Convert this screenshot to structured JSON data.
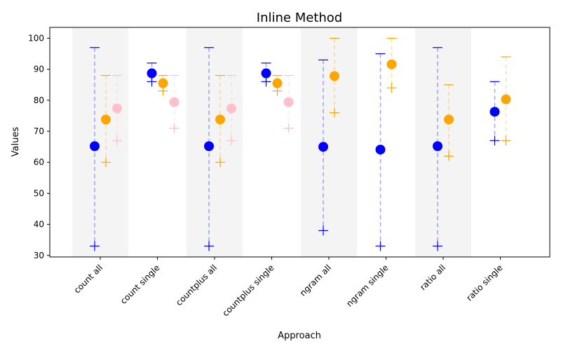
{
  "chart_data": {
    "type": "scatter",
    "title": "Inline Method",
    "xlabel": "Approach",
    "ylabel": "Values",
    "ylim": [
      29.5,
      103.5
    ],
    "yticks": [
      30,
      40,
      50,
      60,
      70,
      80,
      90,
      100
    ],
    "categories": [
      "count all",
      "count single",
      "countplus all",
      "countplus single",
      "ngram all",
      "ngram single",
      "ratio all",
      "ratio single"
    ],
    "shaded_categories": [
      0,
      2,
      4,
      6
    ],
    "grid": false,
    "legend": "none",
    "series": [
      {
        "color": "#0000ff",
        "points": [
          {
            "cat": 0,
            "mean": 65.2,
            "min": 33,
            "max": 97
          },
          {
            "cat": 1,
            "mean": 88.7,
            "min": 86,
            "max": 92
          },
          {
            "cat": 2,
            "mean": 65.2,
            "min": 33,
            "max": 97
          },
          {
            "cat": 3,
            "mean": 88.7,
            "min": 86,
            "max": 92
          },
          {
            "cat": 4,
            "mean": 65.0,
            "min": 38,
            "max": 93
          },
          {
            "cat": 5,
            "mean": 64.1,
            "min": 33,
            "max": 95
          },
          {
            "cat": 6,
            "mean": 65.2,
            "min": 33,
            "max": 97
          },
          {
            "cat": 7,
            "mean": 76.3,
            "min": 67,
            "max": 86
          }
        ]
      },
      {
        "color": "#ffa500",
        "points": [
          {
            "cat": 0,
            "mean": 73.8,
            "min": 60,
            "max": 88
          },
          {
            "cat": 1,
            "mean": 85.5,
            "min": 83,
            "max": 88
          },
          {
            "cat": 2,
            "mean": 73.8,
            "min": 60,
            "max": 88
          },
          {
            "cat": 3,
            "mean": 85.5,
            "min": 83,
            "max": 88
          },
          {
            "cat": 4,
            "mean": 87.8,
            "min": 76,
            "max": 100
          },
          {
            "cat": 5,
            "mean": 91.6,
            "min": 84,
            "max": 100
          },
          {
            "cat": 6,
            "mean": 73.8,
            "min": 62,
            "max": 85
          },
          {
            "cat": 7,
            "mean": 80.3,
            "min": 67,
            "max": 94
          }
        ]
      },
      {
        "color": "#ffc0cb",
        "points": [
          {
            "cat": 0,
            "mean": 77.4,
            "min": 67,
            "max": 88
          },
          {
            "cat": 1,
            "mean": 79.4,
            "min": 71,
            "max": 88
          },
          {
            "cat": 2,
            "mean": 77.4,
            "min": 67,
            "max": 88
          },
          {
            "cat": 3,
            "mean": 79.4,
            "min": 71,
            "max": 88
          }
        ]
      }
    ]
  }
}
